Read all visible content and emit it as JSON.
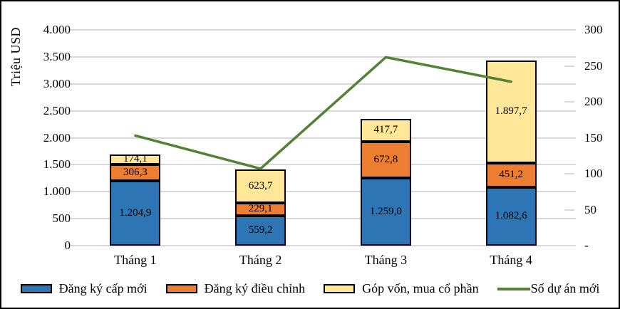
{
  "chart_data": {
    "type": "combo-stacked-bar-line",
    "categories": [
      "Tháng 1",
      "Tháng 2",
      "Tháng 3",
      "Tháng 4"
    ],
    "bar_series": [
      {
        "name": "Đăng ký cấp mới",
        "color": "#2E75B6",
        "values": [
          1204.9,
          559.2,
          1259.0,
          1082.6
        ],
        "labels": [
          "1.204,9",
          "559,2",
          "1.259,0",
          "1.082,6"
        ]
      },
      {
        "name": "Đăng ký điều chỉnh",
        "color": "#ED7D31",
        "values": [
          306.3,
          229.1,
          672.8,
          451.2
        ],
        "labels": [
          "306,3",
          "229,1",
          "672,8",
          "451,2"
        ]
      },
      {
        "name": "Góp vốn, mua cổ phần",
        "color": "#FFE699",
        "values": [
          174.1,
          623.7,
          417.7,
          1897.7
        ],
        "labels": [
          "174,1",
          "623,7",
          "417,7",
          "1.897,7"
        ]
      }
    ],
    "line_series": {
      "name": "Số dự án mới",
      "color": "#548235",
      "values": [
        153,
        107,
        262,
        228
      ]
    },
    "left_axis": {
      "title": "Triệu USD",
      "min": 0,
      "max": 4000,
      "step": 500,
      "tick_labels": [
        "0",
        "500",
        "1.000",
        "1.500",
        "2.000",
        "2.500",
        "3.000",
        "3.500",
        "4.000"
      ]
    },
    "right_axis": {
      "min": 0,
      "max": 300,
      "step": 50,
      "tick_labels": [
        "-",
        "50",
        "100",
        "150",
        "200",
        "250",
        "300"
      ]
    },
    "grid_color": "#D9D9D9",
    "legend_position": "bottom",
    "gridlines": true
  }
}
